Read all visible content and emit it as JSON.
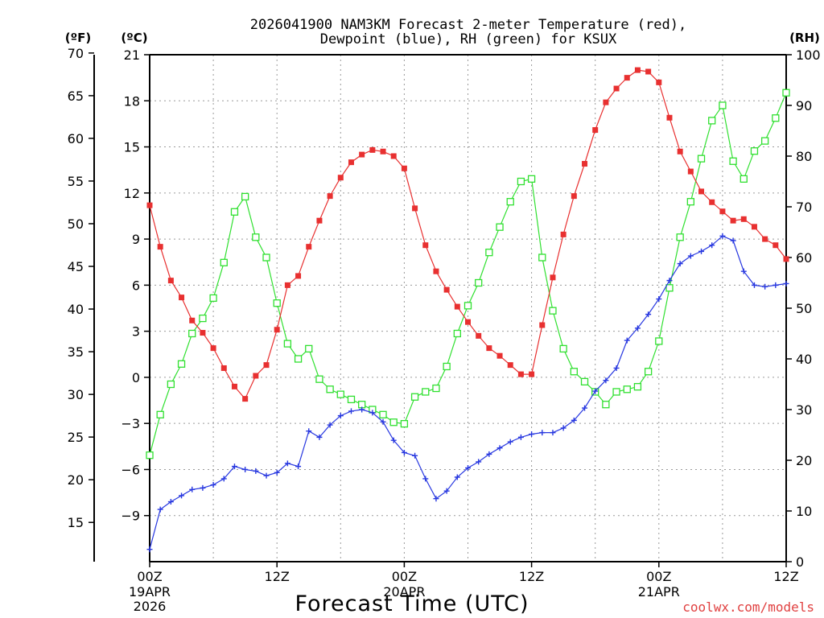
{
  "chart_data": {
    "type": "line",
    "title_line1": "2026041900 NAM3KM Forecast 2-meter Temperature (red),",
    "title_line2": "Dewpoint (blue), RH (green) for KSUX",
    "xlabel": "Forecast Time (UTC)",
    "credit": "coolwx.com/models",
    "units": {
      "f": "(ºF)",
      "c": "(ºC)",
      "rh": "(RH)"
    },
    "x_range_hours": [
      0,
      60
    ],
    "c_range": [
      -12,
      21
    ],
    "rh_range": [
      0,
      100
    ],
    "f_ticks": [
      "70",
      "65",
      "60",
      "55",
      "50",
      "45",
      "40",
      "35",
      "30",
      "25",
      "20",
      "15"
    ],
    "f_tick_values": [
      70,
      65,
      60,
      55,
      50,
      45,
      40,
      35,
      30,
      25,
      20,
      15
    ],
    "c_ticks": [
      "21",
      "18",
      "15",
      "12",
      "9",
      "6",
      "3",
      "0",
      "−3",
      "−6",
      "−9"
    ],
    "c_tick_values": [
      21,
      18,
      15,
      12,
      9,
      6,
      3,
      0,
      -3,
      -6,
      -9
    ],
    "rh_ticks": [
      "100",
      "90",
      "80",
      "70",
      "60",
      "50",
      "40",
      "30",
      "20",
      "10",
      "0"
    ],
    "rh_tick_values": [
      100,
      90,
      80,
      70,
      60,
      50,
      40,
      30,
      20,
      10,
      0
    ],
    "x_ticks": [
      {
        "hour": 0,
        "label": "00Z",
        "date": "19APR",
        "year": "2026"
      },
      {
        "hour": 12,
        "label": "12Z",
        "date": "",
        "year": ""
      },
      {
        "hour": 24,
        "label": "00Z",
        "date": "20APR",
        "year": ""
      },
      {
        "hour": 36,
        "label": "12Z",
        "date": "",
        "year": ""
      },
      {
        "hour": 48,
        "label": "00Z",
        "date": "21APR",
        "year": ""
      },
      {
        "hour": 60,
        "label": "12Z",
        "date": "",
        "year": ""
      }
    ],
    "grid": true,
    "series": [
      {
        "name": "2-meter Temperature",
        "unit": "C",
        "color": "#e83030",
        "marker": "filled-square",
        "values": [
          11.2,
          8.5,
          6.3,
          5.2,
          3.7,
          2.9,
          1.9,
          0.6,
          -0.6,
          -1.4,
          0.1,
          0.8,
          3.1,
          6.0,
          6.6,
          8.5,
          10.2,
          11.8,
          13.0,
          14.0,
          14.5,
          14.8,
          14.7,
          14.4,
          13.6,
          11.0,
          8.6,
          6.9,
          5.7,
          4.6,
          3.6,
          2.7,
          1.9,
          1.4,
          0.8,
          0.2,
          0.2,
          3.4,
          6.5,
          9.3,
          11.8,
          13.9,
          16.1,
          17.9,
          18.8,
          19.5,
          20.0,
          19.9,
          19.2,
          16.9,
          14.7,
          13.4,
          12.1,
          11.4,
          10.8,
          10.2,
          10.3,
          9.8,
          9.0,
          8.6,
          7.7
        ]
      },
      {
        "name": "Dewpoint",
        "unit": "C",
        "color": "#2838e0",
        "marker": "plus",
        "values": [
          -11.2,
          -8.6,
          -8.1,
          -7.7,
          -7.3,
          -7.2,
          -7.0,
          -6.6,
          -5.8,
          -6.0,
          -6.1,
          -6.4,
          -6.2,
          -5.6,
          -5.8,
          -3.5,
          -3.9,
          -3.1,
          -2.5,
          -2.2,
          -2.1,
          -2.3,
          -2.9,
          -4.1,
          -4.9,
          -5.1,
          -6.6,
          -7.9,
          -7.4,
          -6.5,
          -5.9,
          -5.5,
          -5.0,
          -4.6,
          -4.2,
          -3.9,
          -3.7,
          -3.6,
          -3.6,
          -3.3,
          -2.8,
          -2.0,
          -0.9,
          -0.2,
          0.6,
          2.4,
          3.2,
          4.1,
          5.1,
          6.3,
          7.4,
          7.9,
          8.2,
          8.6,
          9.2,
          8.9,
          6.9,
          6.0,
          5.9,
          6.0,
          6.1
        ]
      },
      {
        "name": "RH",
        "unit": "%",
        "color": "#30e030",
        "marker": "open-square",
        "values": [
          21,
          29,
          35,
          39,
          45,
          48,
          52,
          59,
          69,
          72,
          64,
          60,
          51,
          43,
          40,
          42,
          36,
          34,
          33,
          32,
          31,
          30,
          29,
          27.5,
          27.2,
          32.5,
          33.5,
          34.2,
          38.5,
          45,
          50.5,
          55,
          61,
          66,
          71,
          75,
          75.5,
          60,
          49.5,
          42,
          37.5,
          35.5,
          33.5,
          31,
          33.5,
          34,
          34.5,
          37.5,
          43.5,
          54,
          64,
          71,
          79.5,
          87,
          90,
          79,
          75.5,
          81,
          83,
          87.5,
          92.5
        ]
      }
    ]
  }
}
